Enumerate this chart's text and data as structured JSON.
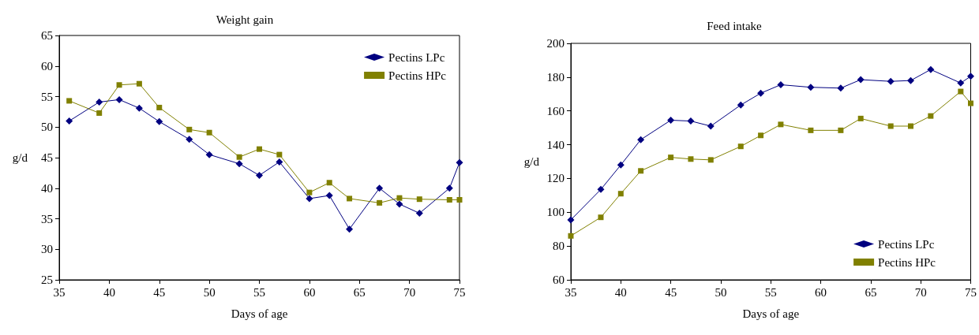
{
  "chart_data": [
    {
      "type": "line",
      "title": "Weight gain",
      "xlabel": "Days of age",
      "ylabel": "g/d",
      "xlim": [
        35,
        75
      ],
      "xticks": [
        35,
        40,
        45,
        50,
        55,
        60,
        65,
        70,
        75
      ],
      "ylim": [
        25,
        65
      ],
      "yticks": [
        25,
        30,
        35,
        40,
        45,
        50,
        55,
        60,
        65
      ],
      "grid": false,
      "legend": "top right",
      "x": [
        36,
        39,
        41,
        43,
        45,
        48,
        50,
        53,
        55,
        57,
        60,
        62,
        64,
        67,
        69,
        71,
        74,
        75
      ],
      "series": [
        {
          "name": "Pectins LPc",
          "color": "#000080",
          "marker": "diamond",
          "values": [
            51,
            54.1,
            54.5,
            53.1,
            50.9,
            48,
            45.5,
            44,
            42.1,
            44.3,
            38.3,
            38.8,
            33.3,
            40,
            37.4,
            35.9,
            40,
            44.2
          ]
        },
        {
          "name": "Pectins HPc",
          "color": "#808000",
          "marker": "square",
          "values": [
            54.3,
            52.3,
            56.9,
            57.1,
            53.2,
            49.6,
            49.1,
            45.1,
            46.4,
            45.5,
            39.3,
            40.9,
            38.3,
            37.6,
            38.4,
            38.2,
            38.1,
            38.1
          ]
        }
      ]
    },
    {
      "type": "line",
      "title": "Feed intake",
      "xlabel": "Days of age",
      "ylabel": "g/d",
      "xlim": [
        35,
        75
      ],
      "xticks": [
        35,
        40,
        45,
        50,
        55,
        60,
        65,
        70,
        75
      ],
      "ylim": [
        60,
        200
      ],
      "yticks": [
        60,
        80,
        100,
        120,
        140,
        160,
        180,
        200
      ],
      "grid": false,
      "legend": "bottom right",
      "x": [
        35,
        38,
        40,
        42,
        45,
        47,
        49,
        52,
        54,
        56,
        59,
        62,
        64,
        67,
        69,
        71,
        74,
        75
      ],
      "series": [
        {
          "name": "Pectins LPc",
          "color": "#000080",
          "marker": "diamond",
          "values": [
            95.5,
            113.5,
            128,
            143,
            154.5,
            154,
            151,
            163.5,
            170.5,
            175.5,
            174,
            173.5,
            178.5,
            177.5,
            178,
            184.5,
            176.5,
            180.5
          ]
        },
        {
          "name": "Pectins HPc",
          "color": "#808000",
          "marker": "square",
          "values": [
            86,
            97,
            111,
            124.5,
            132.5,
            131.5,
            131,
            139,
            145.5,
            152,
            148.5,
            148.5,
            155.5,
            151,
            151,
            157,
            171.5,
            164.5
          ]
        }
      ]
    }
  ]
}
